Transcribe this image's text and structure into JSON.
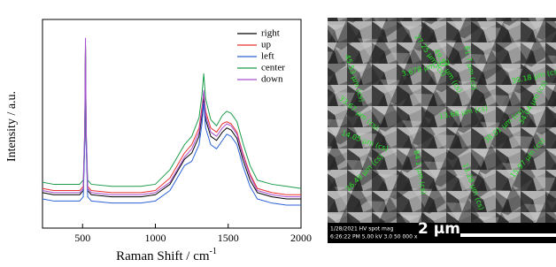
{
  "chart_data": {
    "type": "line",
    "x_label": "Raman Shift / cm",
    "x_label_sup": "-1",
    "y_label": "Intensity / a.u.",
    "x": [
      225,
      300,
      400,
      480,
      505,
      515,
      520,
      525,
      535,
      560,
      700,
      900,
      1000,
      1100,
      1150,
      1200,
      1250,
      1300,
      1320,
      1332,
      1345,
      1380,
      1420,
      1460,
      1490,
      1520,
      1560,
      1600,
      1650,
      1700,
      1800,
      1900,
      2000
    ],
    "xlim": [
      225,
      2000
    ],
    "xticks": [
      500,
      1000,
      1500,
      2000
    ],
    "ylim": [
      0,
      100
    ],
    "legend": "upper right",
    "series": [
      {
        "name": "right",
        "color": "#000000",
        "values": [
          17,
          16,
          16,
          16,
          18,
          42,
          87,
          42,
          18,
          16,
          15,
          15,
          16,
          21,
          27,
          33,
          36,
          44,
          54,
          62,
          52,
          44,
          42,
          46,
          48,
          47,
          43,
          33,
          23,
          17,
          15,
          14,
          14
        ]
      },
      {
        "name": "up",
        "color": "#e8312f",
        "values": [
          19,
          18,
          18,
          18,
          20,
          44,
          88,
          44,
          20,
          18,
          17,
          17,
          18,
          24,
          30,
          36,
          40,
          48,
          58,
          65,
          56,
          48,
          46,
          50,
          51,
          50,
          46,
          36,
          26,
          19,
          17,
          16,
          16
        ]
      },
      {
        "name": "left",
        "color": "#2b62d6",
        "values": [
          14,
          13,
          13,
          13,
          15,
          40,
          86,
          40,
          15,
          13,
          12,
          12,
          13,
          18,
          24,
          30,
          32,
          40,
          50,
          60,
          48,
          40,
          38,
          42,
          45,
          44,
          40,
          30,
          20,
          14,
          12,
          11,
          11
        ]
      },
      {
        "name": "center",
        "color": "#1a9c4a",
        "values": [
          22,
          21,
          21,
          21,
          23,
          46,
          88,
          46,
          23,
          21,
          20,
          20,
          21,
          28,
          34,
          40,
          44,
          53,
          64,
          74,
          62,
          52,
          49,
          54,
          56,
          55,
          51,
          41,
          30,
          23,
          21,
          20,
          19
        ]
      },
      {
        "name": "down",
        "color": "#a64fd1",
        "values": [
          18,
          17,
          17,
          17,
          19,
          48,
          91,
          48,
          19,
          17,
          16,
          16,
          17,
          22,
          28,
          34,
          38,
          46,
          56,
          66,
          54,
          46,
          44,
          48,
          50,
          49,
          45,
          35,
          25,
          18,
          16,
          15,
          15
        ]
      }
    ]
  },
  "sem_image": {
    "measurements": [
      "45.53 µm (cs)",
      "27.25 µm (cs)",
      "49.57 µm (cs)",
      "61.7 µm (cs)",
      "30.18 µm (cs)",
      "33.67 µm (cs)",
      "3.678 µm (cs)",
      "13.68 µm (cs)",
      "34.04 µm (cs)",
      "14.05 µm (cs)",
      "84.1 µm (cs)",
      "38.01 µm (cs)",
      "26.49 µm (cs)",
      "13.28 µm (cs)",
      "15.97 µm (cs)"
    ],
    "scale_bar": "2 µm",
    "info_top": "1/28/2021   HV   spot   mag",
    "info_bottom": "6:26:22 PM  5.00 kV  3.0  50 000 x"
  }
}
